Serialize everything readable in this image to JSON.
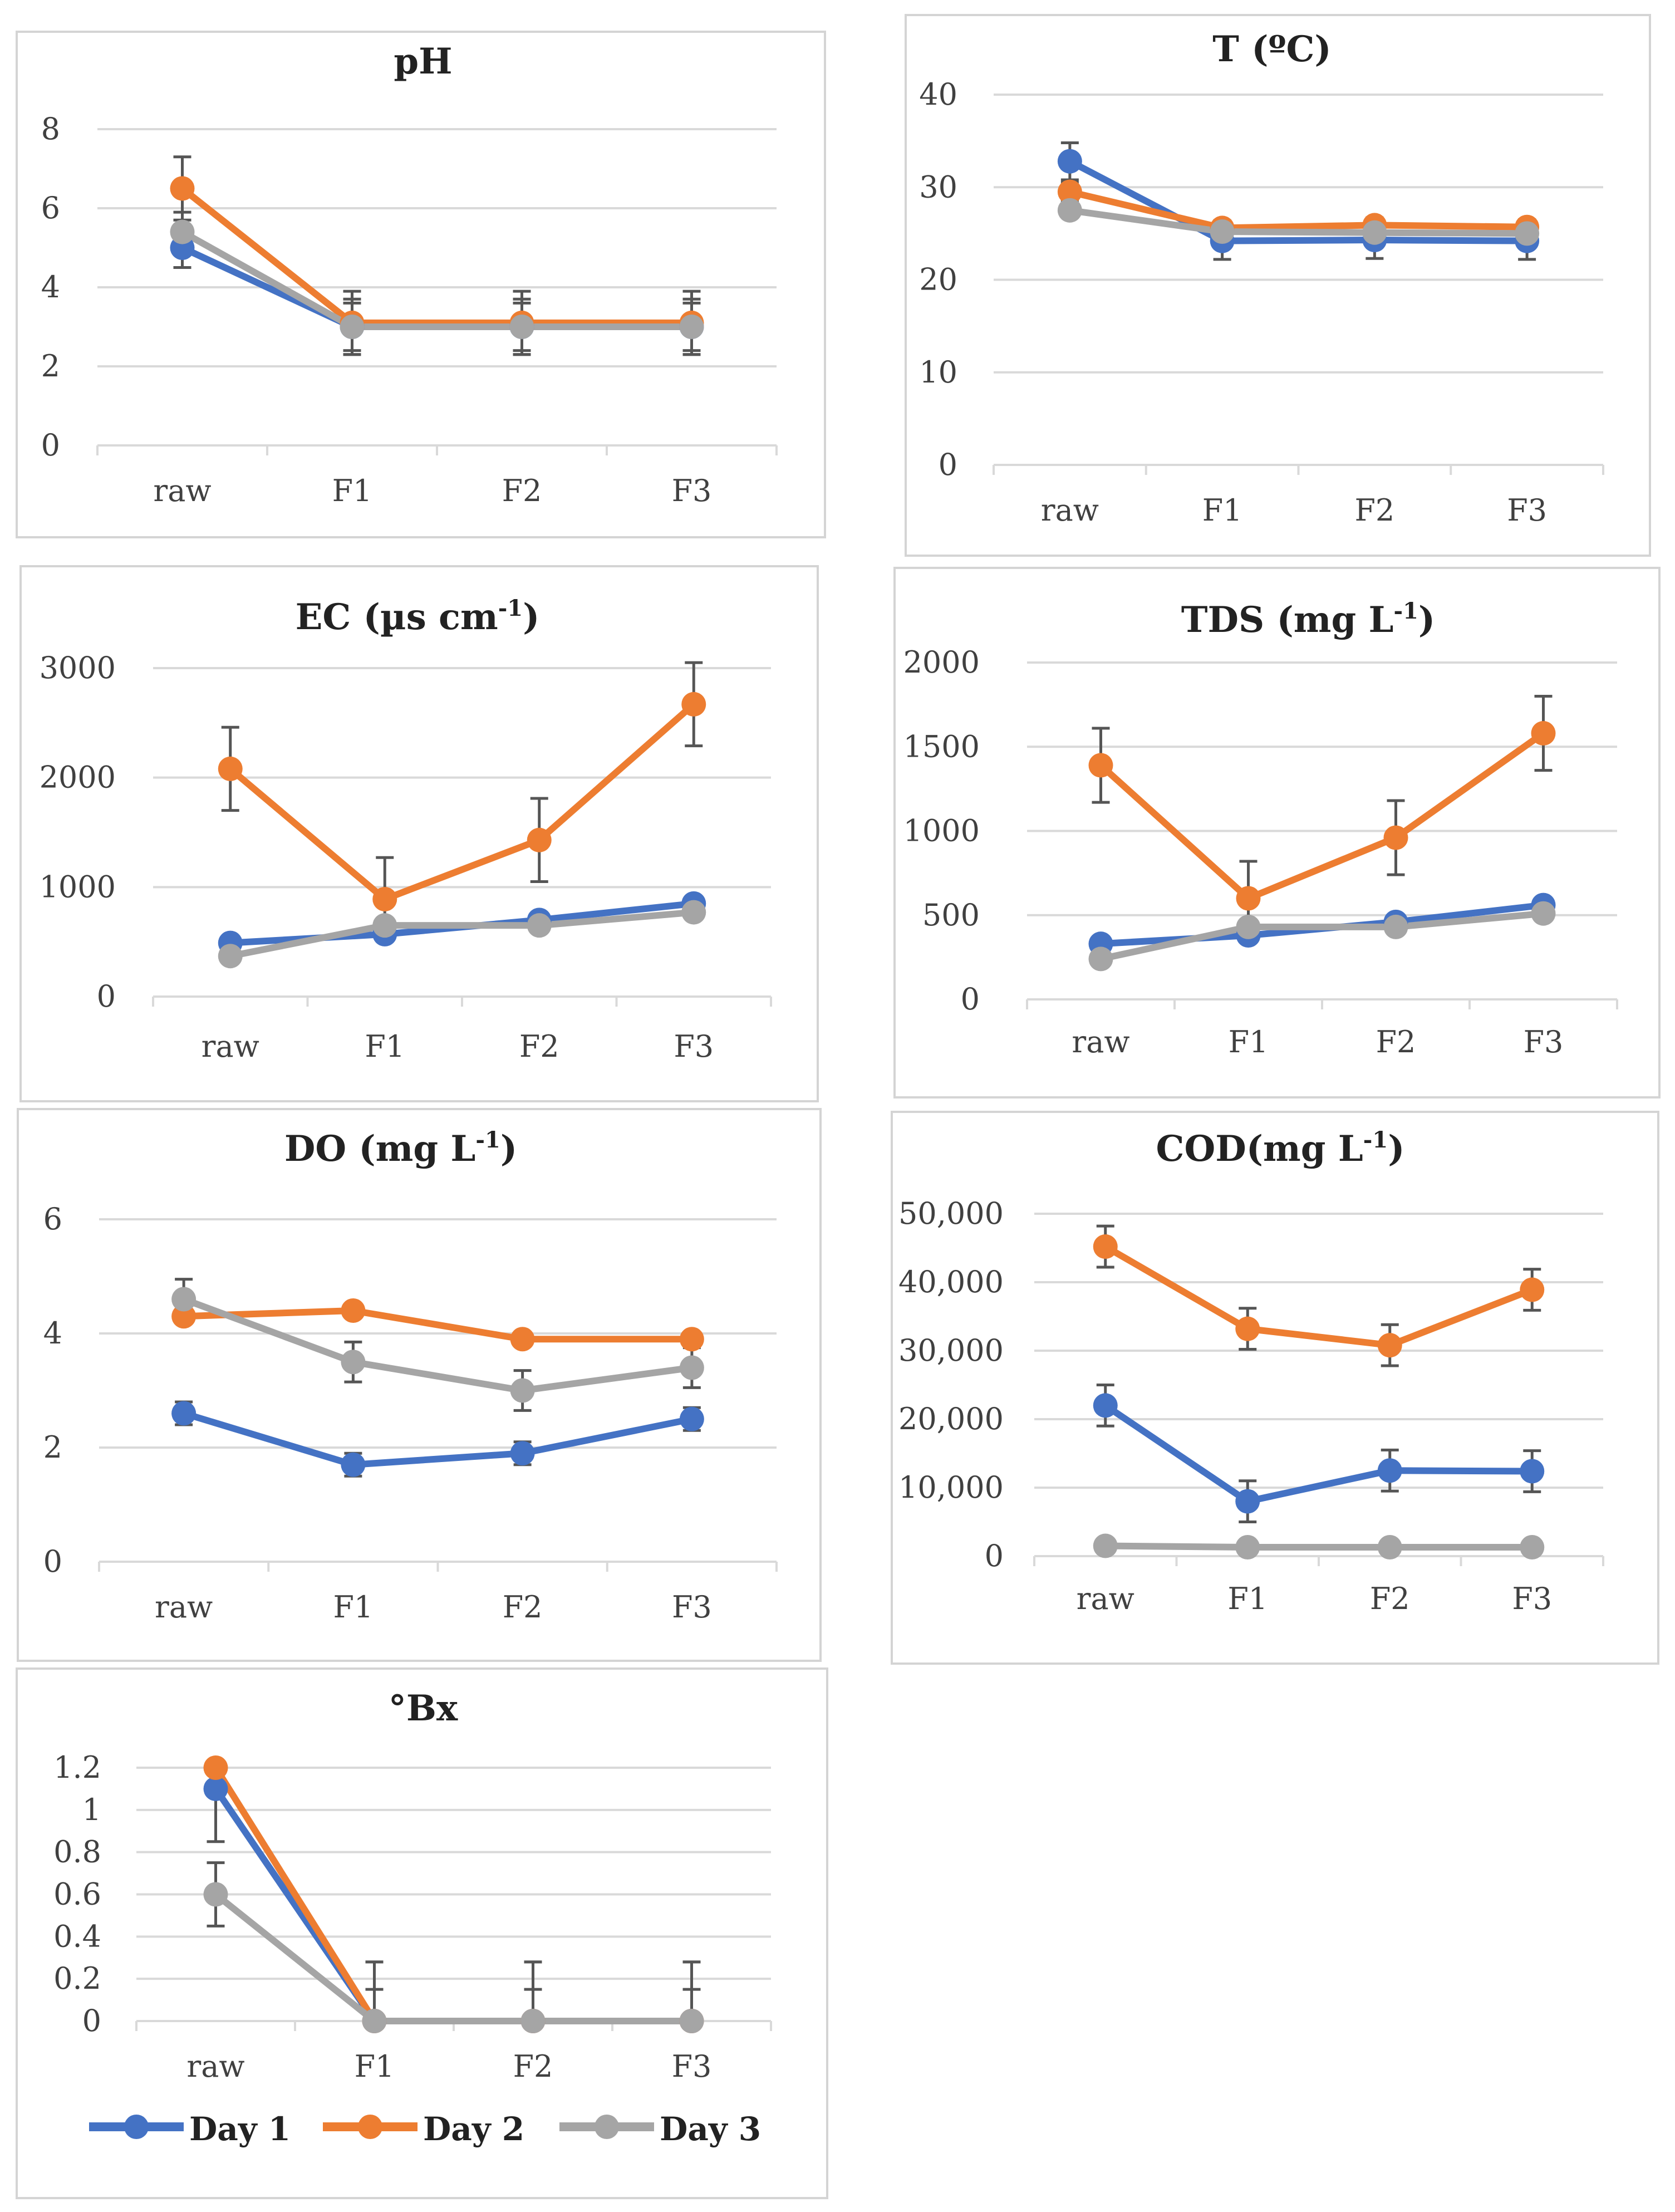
{
  "chart_data": [
    {
      "id": "ph",
      "type": "line",
      "title": "pH",
      "categories": [
        "raw",
        "F1",
        "F2",
        "F3"
      ],
      "ylim": [
        0,
        8
      ],
      "yticks": [
        0,
        2,
        4,
        6,
        8
      ],
      "ytick_labels": [
        "0",
        "2",
        "4",
        "6",
        "8"
      ],
      "grid": true,
      "series": [
        {
          "name": "Day 1",
          "values": [
            5.0,
            3.0,
            3.0,
            3.0
          ],
          "errors": [
            0.5,
            0.7,
            0.7,
            0.7
          ]
        },
        {
          "name": "Day 2",
          "values": [
            6.5,
            3.1,
            3.1,
            3.1
          ],
          "errors": [
            0.8,
            0.8,
            0.8,
            0.8
          ]
        },
        {
          "name": "Day 3",
          "values": [
            5.4,
            3.0,
            3.0,
            3.0
          ],
          "errors": [
            0.5,
            0.6,
            0.6,
            0.6
          ]
        }
      ]
    },
    {
      "id": "temp",
      "type": "line",
      "title": "T (ºC)",
      "categories": [
        "raw",
        "F1",
        "F2",
        "F3"
      ],
      "ylim": [
        0,
        40
      ],
      "yticks": [
        0,
        10,
        20,
        30,
        40
      ],
      "ytick_labels": [
        "0",
        "10",
        "20",
        "30",
        "40"
      ],
      "grid": true,
      "series": [
        {
          "name": "Day 1",
          "values": [
            32.8,
            24.2,
            24.3,
            24.2
          ],
          "errors": [
            2.0,
            2.0,
            2.0,
            2.0
          ]
        },
        {
          "name": "Day 2",
          "values": [
            29.5,
            25.6,
            25.9,
            25.7
          ],
          "errors": [
            1.0,
            0.8,
            0.8,
            0.8
          ]
        },
        {
          "name": "Day 3",
          "values": [
            27.5,
            25.2,
            25.1,
            25.0
          ],
          "errors": [
            0.5,
            0.5,
            0.5,
            0.5
          ]
        }
      ]
    },
    {
      "id": "ec",
      "type": "line",
      "title": "EC (µs cm",
      "title_sup": "-1",
      "title_end": ")",
      "categories": [
        "raw",
        "F1",
        "F2",
        "F3"
      ],
      "ylim": [
        0,
        3000
      ],
      "yticks": [
        0,
        1000,
        2000,
        3000
      ],
      "ytick_labels": [
        "0",
        "1000",
        "2000",
        "3000"
      ],
      "grid": true,
      "series": [
        {
          "name": "Day 1",
          "values": [
            490,
            570,
            700,
            850
          ],
          "errors": [
            40,
            40,
            40,
            40
          ]
        },
        {
          "name": "Day 2",
          "values": [
            2080,
            890,
            1430,
            2670
          ],
          "errors": [
            380,
            380,
            380,
            380
          ]
        },
        {
          "name": "Day 3",
          "values": [
            370,
            650,
            650,
            770
          ],
          "errors": [
            40,
            40,
            40,
            40
          ]
        }
      ]
    },
    {
      "id": "tds",
      "type": "line",
      "title": "TDS (mg L",
      "title_sup": "-1",
      "title_end": ")",
      "categories": [
        "raw",
        "F1",
        "F2",
        "F3"
      ],
      "ylim": [
        0,
        2000
      ],
      "yticks": [
        0,
        500,
        1000,
        1500,
        2000
      ],
      "ytick_labels": [
        "0",
        "500",
        "1000",
        "1500",
        "2000"
      ],
      "grid": true,
      "series": [
        {
          "name": "Day 1",
          "values": [
            330,
            380,
            460,
            560
          ],
          "errors": [
            30,
            30,
            30,
            30
          ]
        },
        {
          "name": "Day 2",
          "values": [
            1390,
            600,
            960,
            1580
          ],
          "errors": [
            220,
            220,
            220,
            220
          ]
        },
        {
          "name": "Day 3",
          "values": [
            240,
            430,
            430,
            510
          ],
          "errors": [
            30,
            30,
            30,
            30
          ]
        }
      ]
    },
    {
      "id": "do",
      "type": "line",
      "title": "DO (mg L",
      "title_sup": "-1",
      "title_end": ")",
      "categories": [
        "raw",
        "F1",
        "F2",
        "F3"
      ],
      "ylim": [
        0,
        6
      ],
      "yticks": [
        0,
        2,
        4,
        6
      ],
      "ytick_labels": [
        "0",
        "2",
        "4",
        "6"
      ],
      "grid": true,
      "series": [
        {
          "name": "Day 1",
          "values": [
            2.6,
            1.7,
            1.9,
            2.5
          ],
          "errors": [
            0.2,
            0.2,
            0.2,
            0.2
          ]
        },
        {
          "name": "Day 2",
          "values": [
            4.3,
            4.4,
            3.9,
            3.9
          ],
          "errors": [
            0.1,
            0.1,
            0.1,
            0.1
          ]
        },
        {
          "name": "Day 3",
          "values": [
            4.6,
            3.5,
            3.0,
            3.4
          ],
          "errors": [
            0.35,
            0.35,
            0.35,
            0.35
          ]
        }
      ]
    },
    {
      "id": "cod",
      "type": "line",
      "title": "COD(mg L",
      "title_sup": "-1",
      "title_end": ")",
      "categories": [
        "raw",
        "F1",
        "F2",
        "F3"
      ],
      "ylim": [
        0,
        50000
      ],
      "yticks": [
        0,
        10000,
        20000,
        30000,
        40000,
        50000
      ],
      "ytick_labels": [
        "0",
        "10,000",
        "20,000",
        "30,000",
        "40,000",
        "50,000"
      ],
      "grid": true,
      "series": [
        {
          "name": "Day 1",
          "values": [
            22000,
            8000,
            12500,
            12400
          ],
          "errors": [
            3000,
            3000,
            3000,
            3000
          ]
        },
        {
          "name": "Day 2",
          "values": [
            45200,
            33200,
            30800,
            38900
          ],
          "errors": [
            3000,
            3000,
            3000,
            3000
          ]
        },
        {
          "name": "Day 3",
          "values": [
            1500,
            1300,
            1300,
            1300
          ],
          "errors": [
            200,
            200,
            200,
            200
          ]
        }
      ]
    },
    {
      "id": "brix",
      "type": "line",
      "title": "°Bx",
      "categories": [
        "raw",
        "F1",
        "F2",
        "F3"
      ],
      "ylim": [
        0,
        1.2
      ],
      "yticks": [
        0,
        0.2,
        0.4,
        0.6,
        0.8,
        1,
        1.2
      ],
      "ytick_labels": [
        "0",
        "0.2",
        "0.4",
        "0.6",
        "0.8",
        "1",
        "1.2"
      ],
      "grid": true,
      "series": [
        {
          "name": "Day 1",
          "values": [
            1.1,
            0,
            0,
            0
          ],
          "errors": [
            0.25,
            0.28,
            0.28,
            0.28
          ]
        },
        {
          "name": "Day 2",
          "values": [
            1.2,
            0,
            0,
            0
          ],
          "errors": [
            0.1,
            0.28,
            0.28,
            0.28
          ]
        },
        {
          "name": "Day 3",
          "values": [
            0.6,
            0,
            0,
            0
          ],
          "errors": [
            0.15,
            0.15,
            0.15,
            0.15
          ]
        }
      ]
    }
  ],
  "legend": {
    "placement": "bottom-left",
    "items": [
      {
        "label": "Day 1",
        "color": "#4472c4"
      },
      {
        "label": "Day 2",
        "color": "#ed7d31"
      },
      {
        "label": "Day 3",
        "color": "#a5a5a5"
      }
    ]
  },
  "colors": {
    "Day 1": "#4472c4",
    "Day 2": "#ed7d31",
    "Day 3": "#a5a5a5",
    "grid": "#d9d9d9",
    "error_bar": "#555555"
  }
}
